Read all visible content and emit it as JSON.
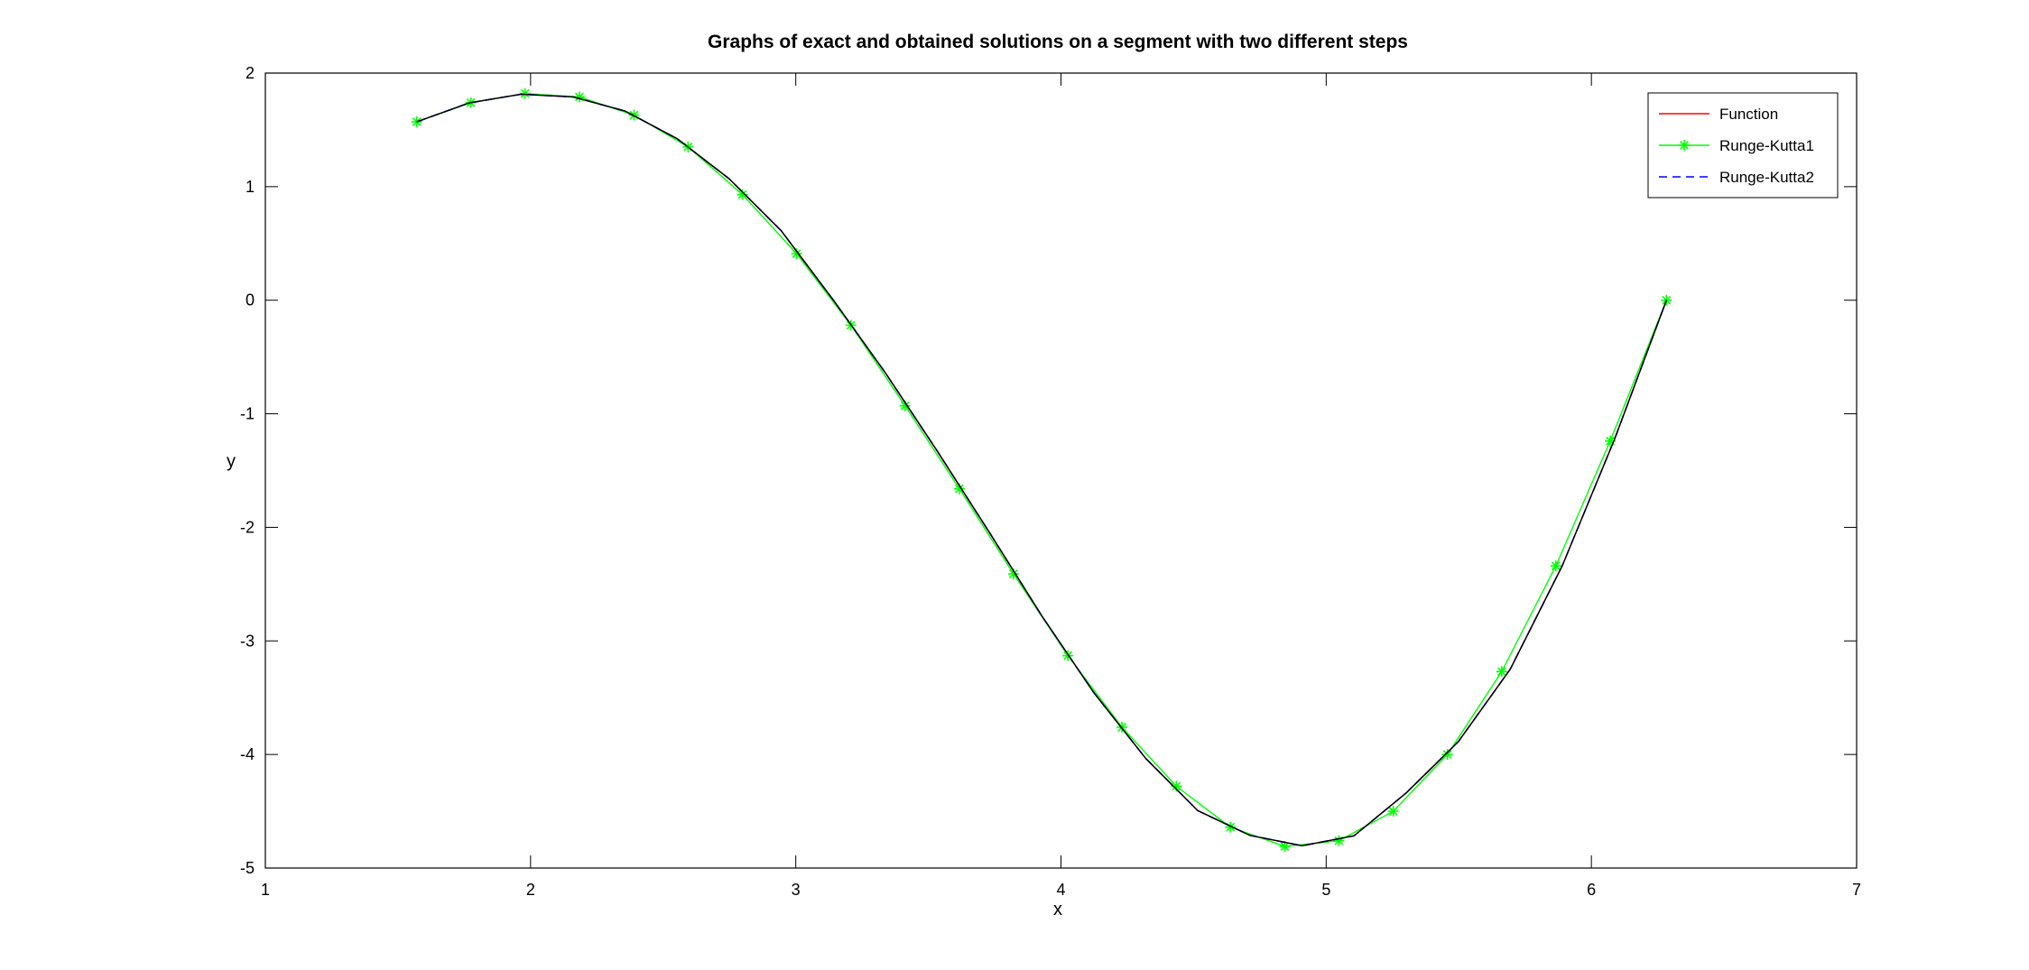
{
  "chart_data": {
    "type": "line",
    "title": "Graphs of exact and obtained solutions on a segment with two different steps",
    "xlabel": "x",
    "ylabel": "y",
    "xlim": [
      1,
      7
    ],
    "ylim": [
      -5,
      2
    ],
    "xticks": [
      "1",
      "2",
      "3",
      "4",
      "5",
      "6",
      "7"
    ],
    "yticks": [
      "2",
      "1",
      "0",
      "-1",
      "-2",
      "-3",
      "-4",
      "-5"
    ],
    "grid": false,
    "legend_position": "top-right",
    "series": [
      {
        "name": "Function",
        "color": "#ff0000",
        "style": "solid",
        "x": [
          1.571,
          1.768,
          1.964,
          2.161,
          2.356,
          2.553,
          2.749,
          2.945,
          3.142,
          3.338,
          3.534,
          3.731,
          3.927,
          4.123,
          4.32,
          4.516,
          4.712,
          4.909,
          5.105,
          5.301,
          5.498,
          5.694,
          5.89,
          6.087,
          6.283
        ],
        "y": [
          1.571,
          1.737,
          1.814,
          1.79,
          1.666,
          1.422,
          1.069,
          0.612,
          0.0,
          -0.64,
          -1.33,
          -2.048,
          -2.777,
          -3.453,
          -4.036,
          -4.495,
          -4.712,
          -4.804,
          -4.716,
          -4.34,
          -3.888,
          -3.249,
          -2.339,
          -1.226,
          0.0
        ]
      },
      {
        "name": "Runge-Kutta1",
        "color": "#00ff00",
        "style": "solid",
        "marker": "asterisk",
        "x": [
          1.571,
          1.775,
          1.979,
          2.184,
          2.39,
          2.594,
          2.799,
          3.003,
          3.208,
          3.412,
          3.617,
          3.821,
          4.026,
          4.23,
          4.435,
          4.639,
          4.844,
          5.048,
          5.253,
          5.457,
          5.662,
          5.866,
          6.071,
          6.283
        ],
        "y": [
          1.571,
          1.74,
          1.82,
          1.79,
          1.63,
          1.35,
          0.93,
          0.41,
          -0.22,
          -0.93,
          -1.66,
          -2.41,
          -3.13,
          -3.76,
          -4.28,
          -4.64,
          -4.81,
          -4.76,
          -4.5,
          -4.0,
          -3.27,
          -2.34,
          -1.24,
          0.0
        ]
      },
      {
        "name": "Runge-Kutta2",
        "color": "#0000ff",
        "style": "dashed",
        "x": [
          1.571,
          1.768,
          1.964,
          2.161,
          2.356,
          2.553,
          2.749,
          2.945,
          3.142,
          3.338,
          3.534,
          3.731,
          3.927,
          4.123,
          4.32,
          4.516,
          4.712,
          4.909,
          5.105,
          5.301,
          5.498,
          5.694,
          5.89,
          6.087,
          6.283
        ],
        "y": [
          1.571,
          1.737,
          1.814,
          1.79,
          1.666,
          1.422,
          1.069,
          0.612,
          0.0,
          -0.64,
          -1.33,
          -2.048,
          -2.777,
          -3.453,
          -4.036,
          -4.495,
          -4.712,
          -4.804,
          -4.716,
          -4.34,
          -3.888,
          -3.249,
          -2.339,
          -1.226,
          0.0
        ]
      },
      {
        "name": "",
        "color": "#000000",
        "style": "solid",
        "x": [
          1.571,
          1.768,
          1.964,
          2.161,
          2.356,
          2.553,
          2.749,
          2.945,
          3.142,
          3.338,
          3.534,
          3.731,
          3.927,
          4.123,
          4.32,
          4.516,
          4.712,
          4.909,
          5.105,
          5.301,
          5.498,
          5.694,
          5.89,
          6.087,
          6.283
        ],
        "y": [
          1.571,
          1.737,
          1.814,
          1.79,
          1.666,
          1.422,
          1.069,
          0.612,
          0.0,
          -0.64,
          -1.33,
          -2.048,
          -2.777,
          -3.453,
          -4.036,
          -4.495,
          -4.712,
          -4.804,
          -4.716,
          -4.34,
          -3.888,
          -3.249,
          -2.339,
          -1.226,
          0.0
        ]
      }
    ],
    "legend": [
      {
        "label": "Function",
        "color": "#ff0000",
        "style": "solid",
        "marker": ""
      },
      {
        "label": "Runge-Kutta1",
        "color": "#00ff00",
        "style": "solid",
        "marker": "asterisk"
      },
      {
        "label": "Runge-Kutta2",
        "color": "#0000ff",
        "style": "dashed",
        "marker": ""
      }
    ]
  }
}
